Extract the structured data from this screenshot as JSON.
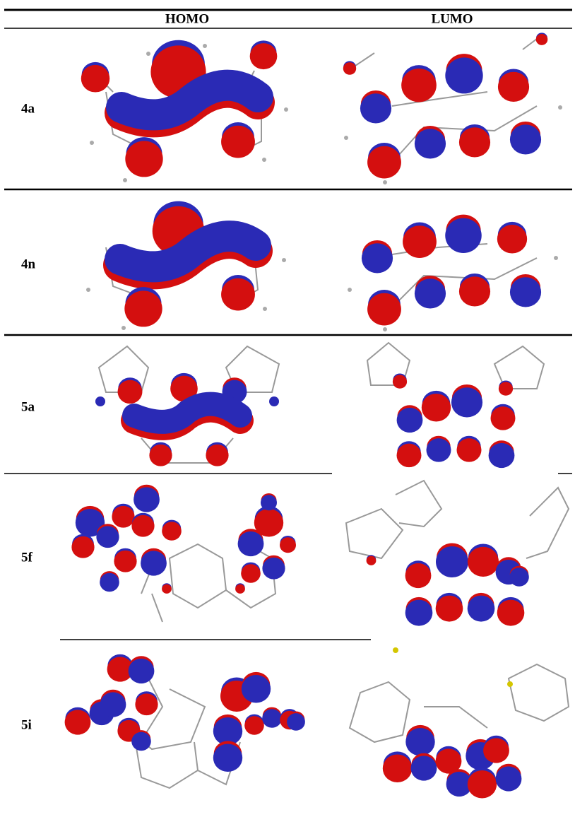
{
  "table": {
    "columns": [
      "HOMO",
      "LUMO"
    ],
    "rows": [
      "4a",
      "4n",
      "5a",
      "5f",
      "5i"
    ]
  }
}
